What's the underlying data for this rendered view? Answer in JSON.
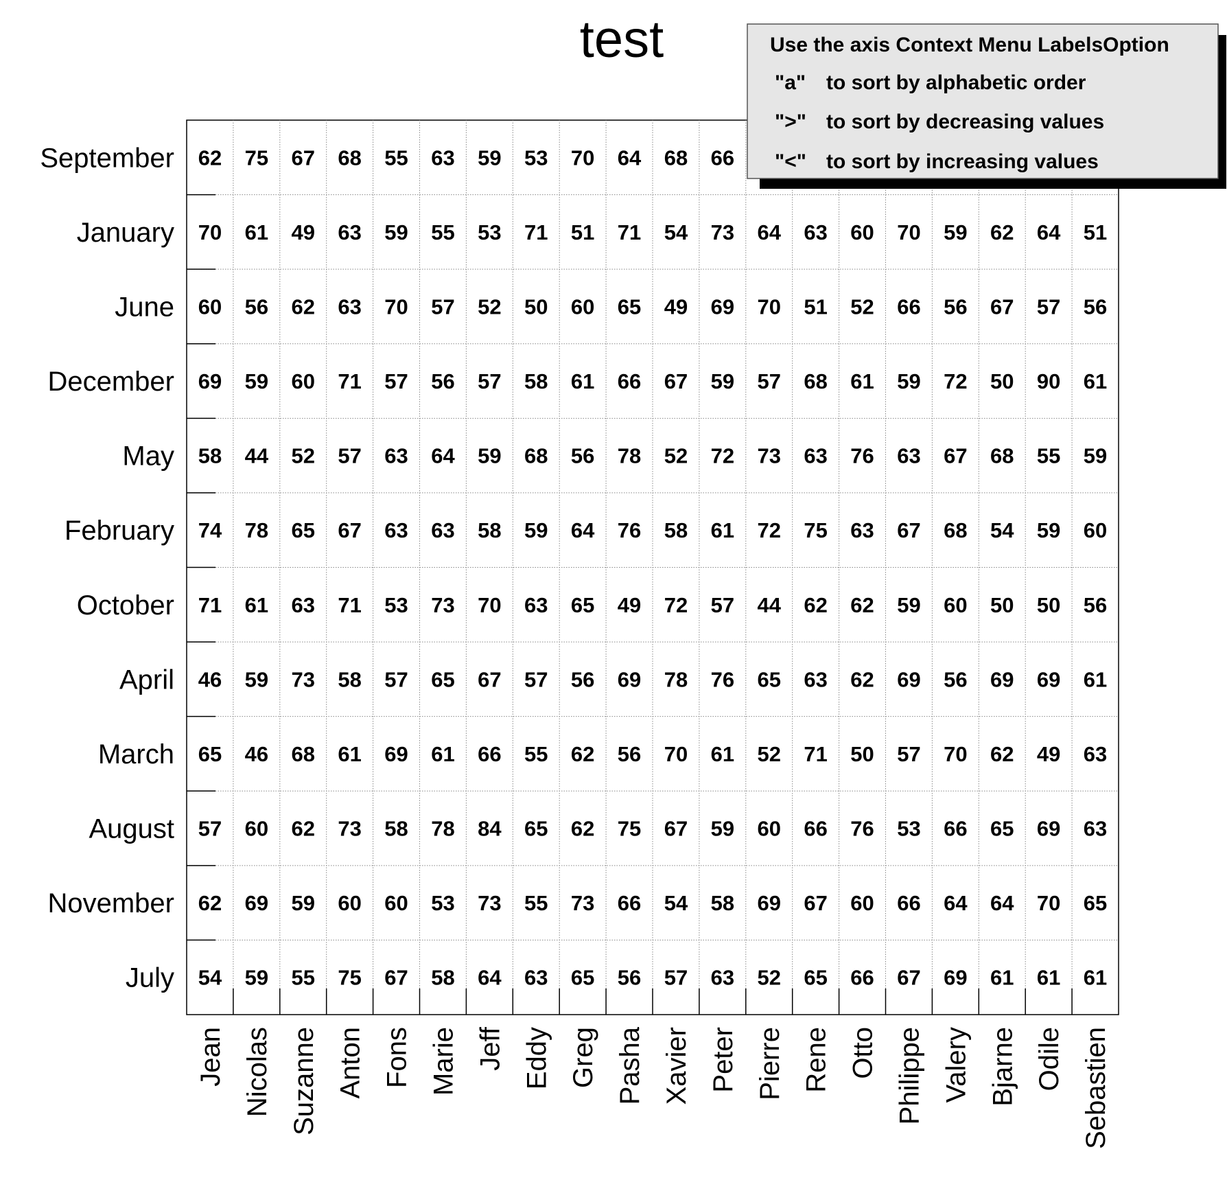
{
  "chart_data": {
    "type": "table",
    "title": "test",
    "rows": [
      "September",
      "January",
      "June",
      "December",
      "May",
      "February",
      "October",
      "April",
      "March",
      "August",
      "November",
      "July"
    ],
    "columns": [
      "Jean",
      "Nicolas",
      "Suzanne",
      "Anton",
      "Fons",
      "Marie",
      "Jeff",
      "Eddy",
      "Greg",
      "Pasha",
      "Xavier",
      "Peter",
      "Pierre",
      "Rene",
      "Otto",
      "Philippe",
      "Valery",
      "Bjarne",
      "Odile",
      "Sebastien"
    ],
    "values": [
      [
        62,
        75,
        67,
        68,
        55,
        63,
        59,
        53,
        70,
        64,
        68,
        66,
        null,
        null,
        null,
        null,
        null,
        null,
        null,
        null
      ],
      [
        70,
        61,
        49,
        63,
        59,
        55,
        53,
        71,
        51,
        71,
        54,
        73,
        64,
        63,
        60,
        70,
        59,
        62,
        64,
        51
      ],
      [
        60,
        56,
        62,
        63,
        70,
        57,
        52,
        50,
        60,
        65,
        49,
        69,
        70,
        51,
        52,
        66,
        56,
        67,
        57,
        56
      ],
      [
        69,
        59,
        60,
        71,
        57,
        56,
        57,
        58,
        61,
        66,
        67,
        59,
        57,
        68,
        61,
        59,
        72,
        50,
        90,
        61
      ],
      [
        58,
        44,
        52,
        57,
        63,
        64,
        59,
        68,
        56,
        78,
        52,
        72,
        73,
        63,
        76,
        63,
        67,
        68,
        55,
        59
      ],
      [
        74,
        78,
        65,
        67,
        63,
        63,
        58,
        59,
        64,
        76,
        58,
        61,
        72,
        75,
        63,
        67,
        68,
        54,
        59,
        60
      ],
      [
        71,
        61,
        63,
        71,
        53,
        73,
        70,
        63,
        65,
        49,
        72,
        57,
        44,
        62,
        62,
        59,
        60,
        50,
        50,
        56
      ],
      [
        46,
        59,
        73,
        58,
        57,
        65,
        67,
        57,
        56,
        69,
        78,
        76,
        65,
        63,
        62,
        69,
        56,
        69,
        69,
        61
      ],
      [
        65,
        46,
        68,
        61,
        69,
        61,
        66,
        55,
        62,
        56,
        70,
        61,
        52,
        71,
        50,
        57,
        70,
        62,
        49,
        63
      ],
      [
        57,
        60,
        62,
        73,
        58,
        78,
        84,
        65,
        62,
        75,
        67,
        59,
        60,
        66,
        76,
        53,
        66,
        65,
        69,
        63
      ],
      [
        62,
        69,
        59,
        60,
        60,
        53,
        73,
        55,
        73,
        66,
        54,
        58,
        69,
        67,
        60,
        66,
        64,
        64,
        70,
        65
      ],
      [
        54,
        59,
        55,
        75,
        67,
        58,
        64,
        63,
        65,
        56,
        57,
        63,
        52,
        65,
        66,
        67,
        69,
        61,
        61,
        61
      ]
    ],
    "grid": true
  },
  "legend": {
    "header": "Use the axis Context Menu LabelsOption",
    "items": [
      {
        "key": "\"a\"",
        "desc": "to sort by alphabetic order"
      },
      {
        "key": "\">\"",
        "desc": "to sort by decreasing values"
      },
      {
        "key": "\"<\"",
        "desc": "to sort by increasing values"
      }
    ]
  }
}
